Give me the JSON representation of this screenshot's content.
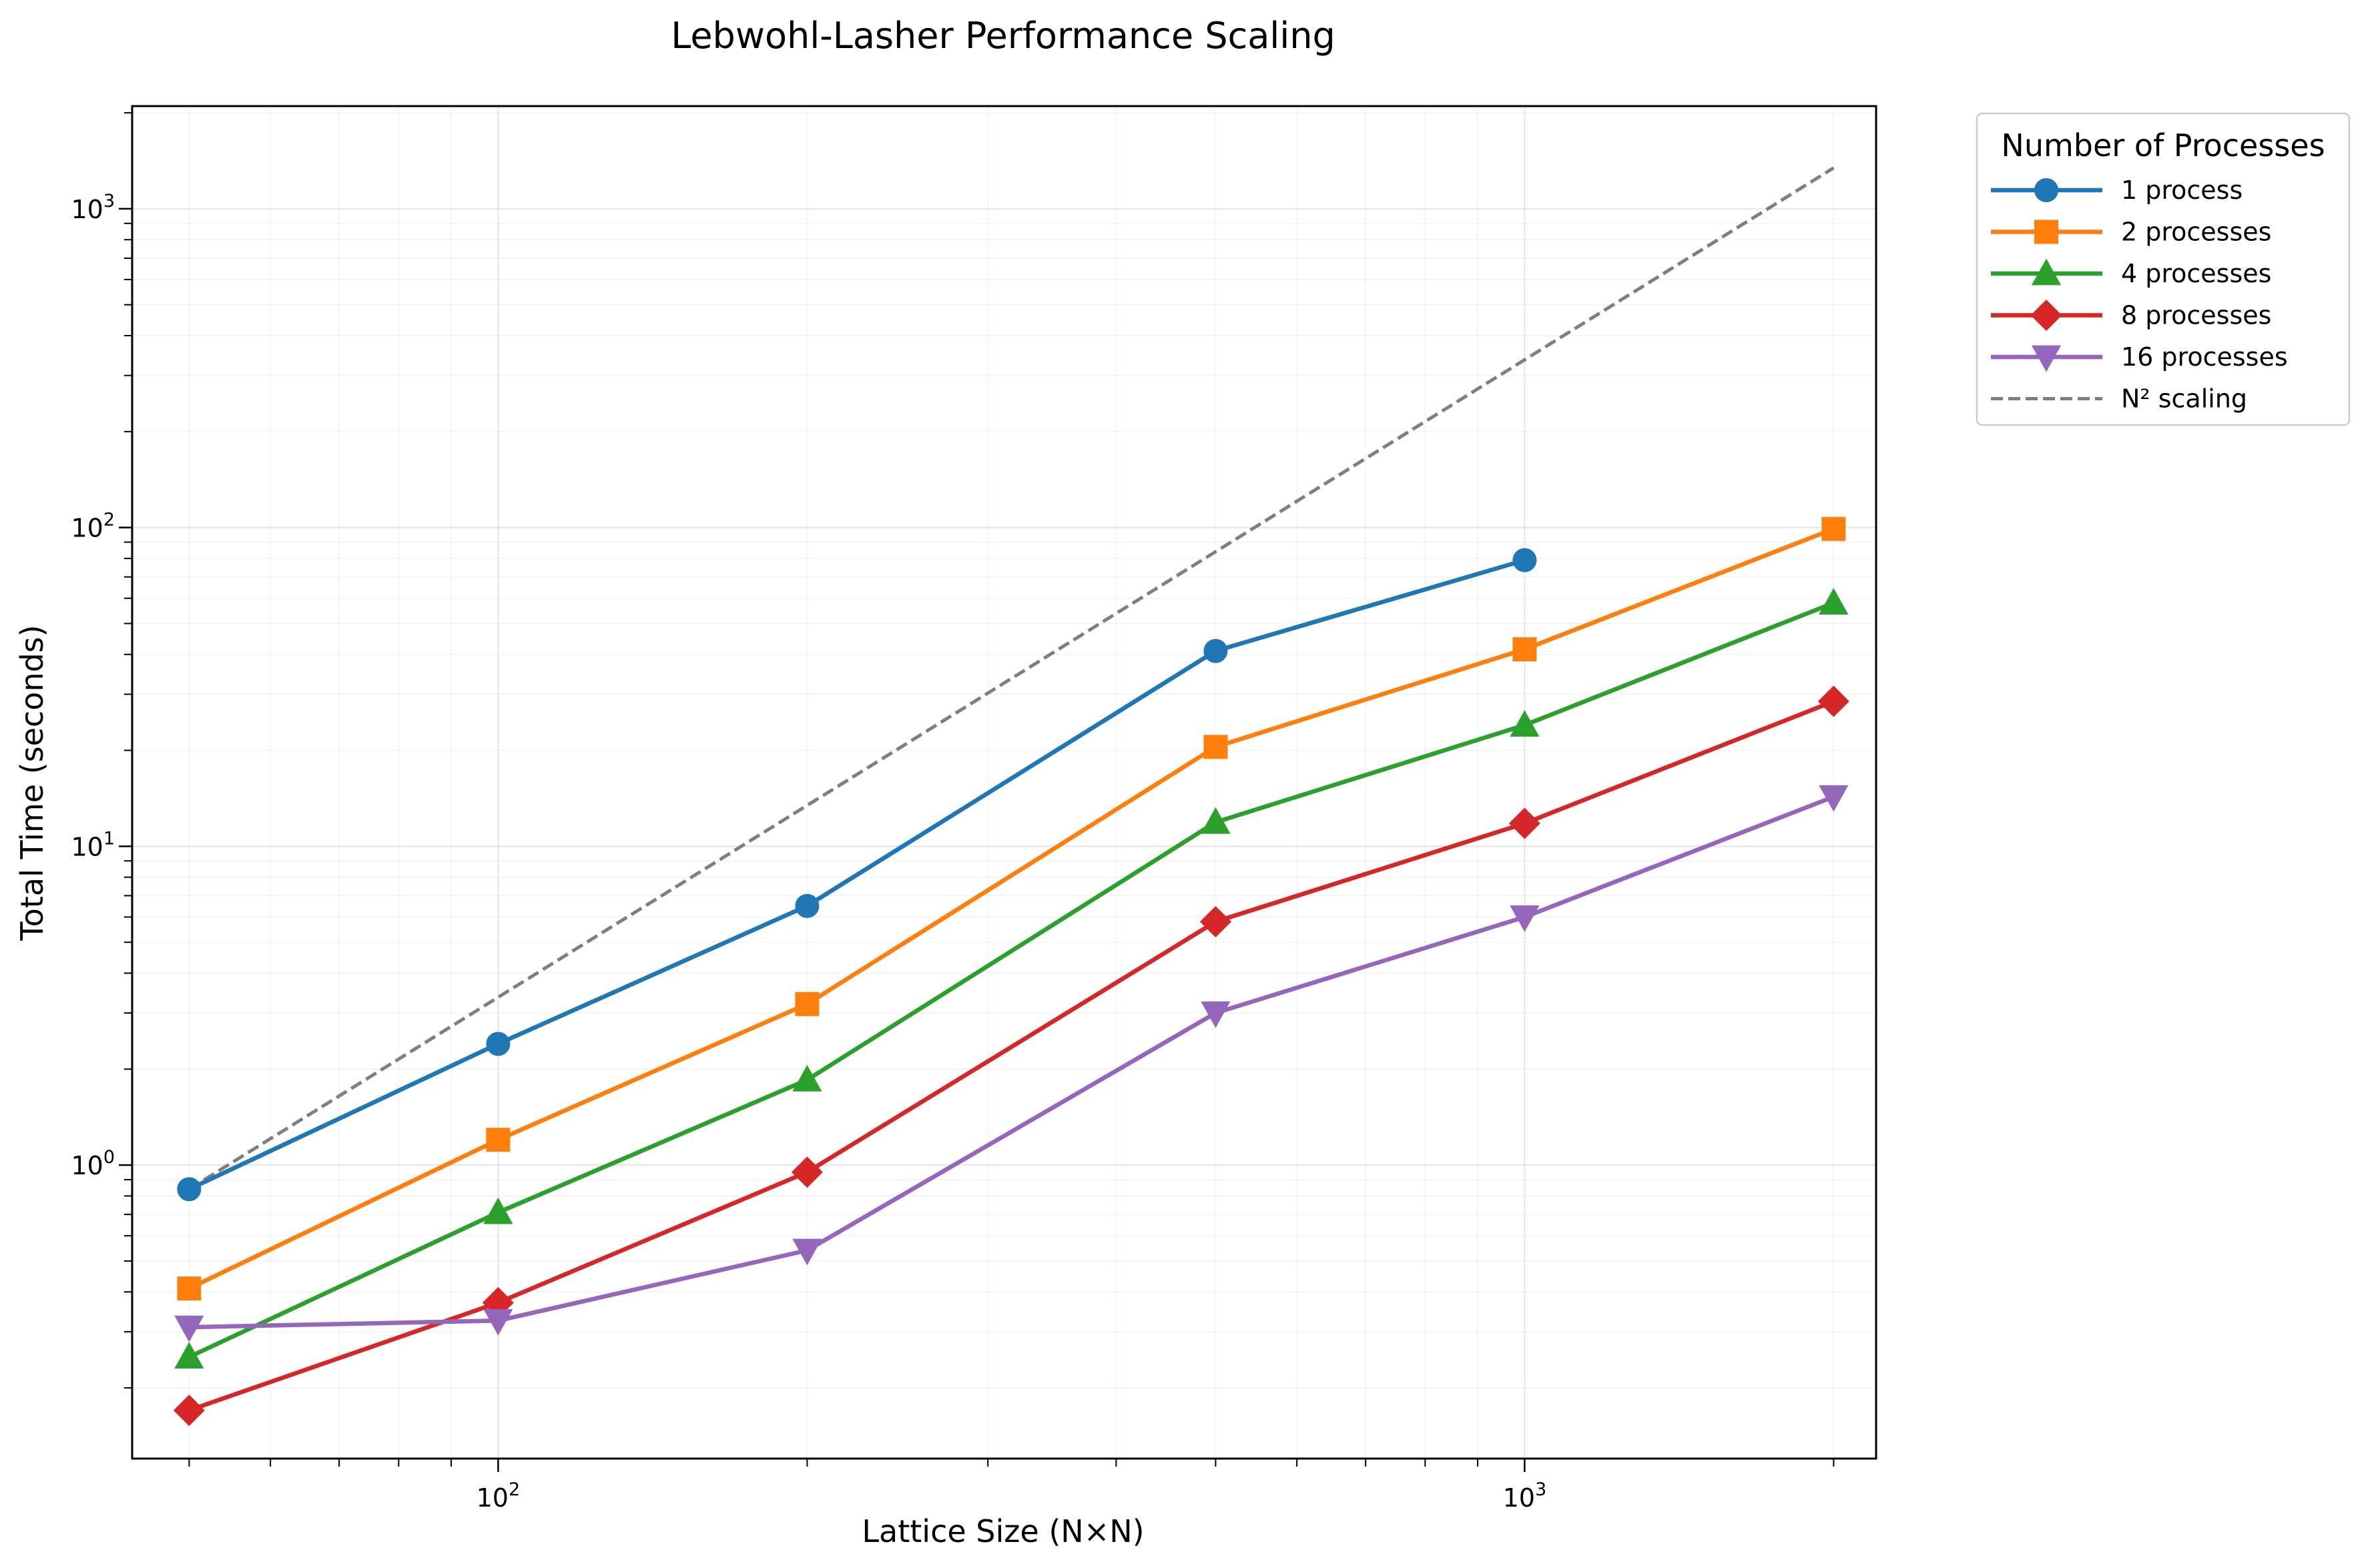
{
  "chart_data": {
    "type": "line",
    "title": "Lebwohl-Lasher Performance Scaling",
    "xlabel": "Lattice Size (N×N)",
    "ylabel": "Total Time (seconds)",
    "xscale": "log",
    "yscale": "log",
    "xlim": [
      44,
      2200
    ],
    "ylim": [
      0.12,
      2100
    ],
    "grid": true,
    "x_ticks": [
      {
        "base": "10",
        "exp": "2",
        "value": 100
      },
      {
        "base": "10",
        "exp": "3",
        "value": 1000
      }
    ],
    "y_ticks": [
      {
        "base": "10",
        "exp": "0",
        "value": 1
      },
      {
        "base": "10",
        "exp": "1",
        "value": 10
      },
      {
        "base": "10",
        "exp": "2",
        "value": 100
      },
      {
        "base": "10",
        "exp": "3",
        "value": 1000
      }
    ],
    "legend": {
      "title": "Number of Processes",
      "position": "outside-top-right"
    },
    "series": [
      {
        "name": "1 process",
        "color": "#1f77b4",
        "marker": "circle",
        "line": "solid",
        "x": [
          50,
          100,
          200,
          500,
          1000
        ],
        "y": [
          0.84,
          2.4,
          6.5,
          41,
          79
        ]
      },
      {
        "name": "2 processes",
        "color": "#ff7f0e",
        "marker": "square",
        "line": "solid",
        "x": [
          50,
          100,
          200,
          500,
          1000,
          2000
        ],
        "y": [
          0.41,
          1.2,
          3.2,
          20.5,
          41.5,
          99
        ]
      },
      {
        "name": "4 processes",
        "color": "#2ca02c",
        "marker": "triangle-up",
        "line": "solid",
        "x": [
          50,
          100,
          200,
          500,
          1000,
          2000
        ],
        "y": [
          0.25,
          0.71,
          1.85,
          11.9,
          24,
          58
        ]
      },
      {
        "name": "8 processes",
        "color": "#d62728",
        "marker": "diamond",
        "line": "solid",
        "x": [
          50,
          100,
          200,
          500,
          1000,
          2000
        ],
        "y": [
          0.17,
          0.37,
          0.95,
          5.8,
          11.8,
          28.5
        ]
      },
      {
        "name": "16 processes",
        "color": "#9467bd",
        "marker": "triangle-down",
        "line": "solid",
        "x": [
          50,
          100,
          200,
          500,
          1000,
          2000
        ],
        "y": [
          0.31,
          0.325,
          0.54,
          3.0,
          6.0,
          14.3
        ]
      },
      {
        "name": "N² scaling",
        "color": "#7f7f7f",
        "marker": "none",
        "line": "dashed",
        "x": [
          50,
          2000
        ],
        "y": [
          0.84,
          1344
        ]
      }
    ]
  }
}
